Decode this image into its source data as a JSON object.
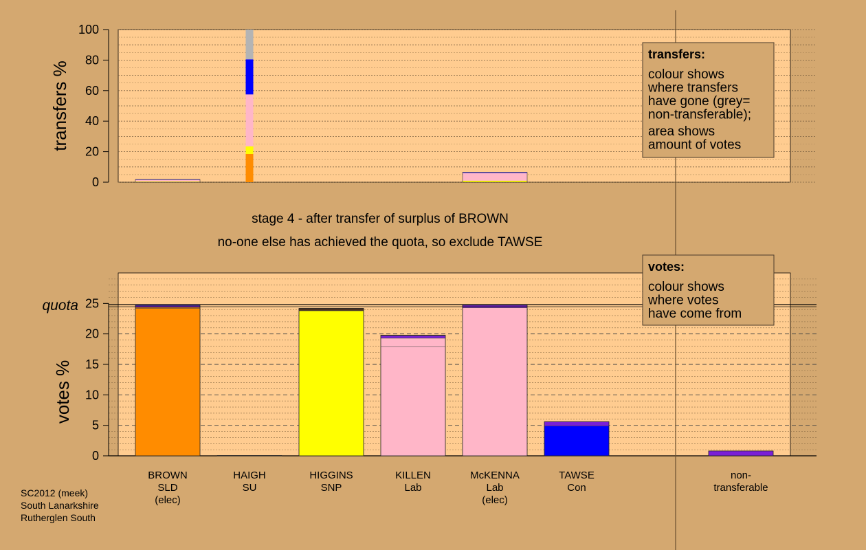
{
  "chart_data": [
    {
      "type": "bar",
      "stacked": true,
      "ylabel": "transfers %",
      "ylim": [
        0,
        100
      ],
      "yticks": [
        "0",
        "20",
        "40",
        "60",
        "80",
        "100"
      ],
      "bars": [
        {
          "name": "BROWN",
          "segments": [
            {
              "value": 0.5,
              "color": "#ffff00"
            },
            {
              "value": 1.0,
              "color": "#ffb6c8"
            },
            {
              "value": 0.3,
              "color": "#0000ff"
            }
          ]
        },
        {
          "name": "HAIGH",
          "segments": [
            {
              "value": 18.5,
              "color": "#ff8c00"
            },
            {
              "value": 5.0,
              "color": "#ffff00"
            },
            {
              "value": 34.0,
              "color": "#ffb6c8"
            },
            {
              "value": 23.0,
              "color": "#0000ff"
            },
            {
              "value": 19.5,
              "color": "#b4b4b4"
            }
          ]
        },
        {
          "name": "HIGGINS",
          "segments": []
        },
        {
          "name": "KILLEN",
          "segments": []
        },
        {
          "name": "McKENNA",
          "segments": [
            {
              "value": 1.0,
              "color": "#ffff00"
            },
            {
              "value": 5.0,
              "color": "#ffb6c8"
            },
            {
              "value": 0.5,
              "color": "#0000ff"
            }
          ]
        },
        {
          "name": "TAWSE",
          "segments": []
        }
      ],
      "legend": {
        "title": "transfers:",
        "lines": [
          "colour shows",
          "where transfers",
          "have gone (grey=",
          "non-transferable);"
        ],
        "lines2": [
          "area shows",
          "amount of votes"
        ]
      }
    },
    {
      "type": "bar",
      "stacked": true,
      "ylabel": "votes %",
      "ylim": [
        0,
        30
      ],
      "yticks": [
        "0",
        "5",
        "10",
        "15",
        "20",
        "25"
      ],
      "quota": 24.8,
      "quota_label": "quota",
      "categories": [
        "BROWN",
        "HAIGH",
        "HIGGINS",
        "KILLEN",
        "McKENNA",
        "TAWSE",
        "non-transferable"
      ],
      "bars": [
        {
          "name": "BROWN",
          "segments": [
            {
              "value": 24.2,
              "color": "#ff8c00"
            },
            {
              "value": 0.15,
              "color": "#ff8c00"
            },
            {
              "value": 0.3,
              "color": "#7a1fd6"
            },
            {
              "value": 0.15,
              "color": "#0000ff"
            }
          ]
        },
        {
          "name": "HAIGH",
          "segments": [
            {
              "value": 0.05,
              "color": "#3a2a1a"
            }
          ]
        },
        {
          "name": "HIGGINS",
          "segments": [
            {
              "value": 23.8,
              "color": "#ffff00"
            },
            {
              "value": 0.4,
              "color": "#4a3020"
            }
          ]
        },
        {
          "name": "KILLEN",
          "segments": [
            {
              "value": 17.9,
              "color": "#ffb6c8"
            },
            {
              "value": 1.4,
              "color": "#ffb6c8"
            },
            {
              "value": 0.4,
              "color": "#7a1fd6"
            },
            {
              "value": 0.1,
              "color": "#4a3020"
            }
          ]
        },
        {
          "name": "McKENNA",
          "segments": [
            {
              "value": 24.3,
              "color": "#ffb6c8"
            },
            {
              "value": 0.4,
              "color": "#7a1fd6"
            },
            {
              "value": 0.1,
              "color": "#0000ff"
            }
          ]
        },
        {
          "name": "TAWSE",
          "segments": [
            {
              "value": 4.9,
              "color": "#0000ff"
            },
            {
              "value": 0.7,
              "color": "#7a1fd6"
            }
          ]
        },
        {
          "name": "non-transferable",
          "segments": [
            {
              "value": 0.8,
              "color": "#7a1fd6"
            }
          ]
        }
      ],
      "legend": {
        "title": "votes:",
        "lines": [
          "colour shows",
          "where votes",
          "have come from"
        ]
      }
    }
  ],
  "candidates": [
    {
      "lines": [
        "BROWN",
        "SLD",
        "(elec)"
      ]
    },
    {
      "lines": [
        "HAIGH",
        "SU"
      ]
    },
    {
      "lines": [
        "HIGGINS",
        "SNP"
      ]
    },
    {
      "lines": [
        "KILLEN",
        "Lab"
      ]
    },
    {
      "lines": [
        "McKENNA",
        "Lab",
        "(elec)"
      ]
    },
    {
      "lines": [
        "TAWSE",
        "Con"
      ]
    },
    {
      "lines": [
        "non-",
        "transferable"
      ]
    }
  ],
  "stage": {
    "line1": "stage 4 - after transfer of surplus of BROWN",
    "line2": "no-one else has achieved the quota, so exclude TAWSE"
  },
  "footer": [
    "SC2012 (meek)",
    "South Lanarkshire",
    "Rutherglen South"
  ],
  "colors": {
    "background": "#d4a870",
    "panel": "#ffcc90"
  }
}
